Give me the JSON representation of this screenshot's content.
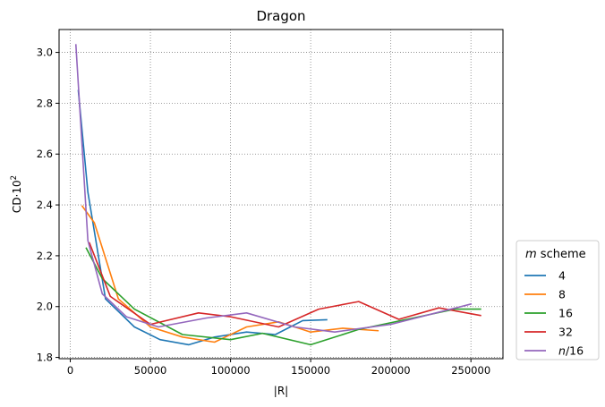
{
  "chart_data": {
    "type": "line",
    "title": "Dragon",
    "xlabel": "|R|",
    "ylabel": "CD·10",
    "ylabel_sup": "2",
    "xlim": [
      -7000,
      270000
    ],
    "ylim": [
      1.795,
      3.09
    ],
    "xticks": [
      0,
      50000,
      100000,
      150000,
      200000,
      250000
    ],
    "yticks": [
      1.8,
      2.0,
      2.2,
      2.4,
      2.6,
      2.8,
      3.0
    ],
    "ytick_labels": [
      "1.8",
      "2.0",
      "2.2",
      "2.4",
      "2.6",
      "2.8",
      "3.0"
    ],
    "grid": true,
    "legend": {
      "placement": "lower-right-outside",
      "title_italic": "m",
      "title_rest": " scheme"
    },
    "series": [
      {
        "name": "4",
        "color": "#1f77b4",
        "x": [
          5000,
          11000,
          22000,
          40000,
          56000,
          74000,
          90000,
          110000,
          128000,
          145000,
          160000
        ],
        "y": [
          2.85,
          2.45,
          2.03,
          1.92,
          1.87,
          1.85,
          1.88,
          1.9,
          1.89,
          1.945,
          1.948
        ]
      },
      {
        "name": "8",
        "color": "#ff7f0e",
        "x": [
          7500,
          15000,
          30000,
          50000,
          70000,
          90000,
          110000,
          130000,
          150000,
          170000,
          192000
        ],
        "y": [
          2.395,
          2.33,
          2.03,
          1.92,
          1.88,
          1.86,
          1.92,
          1.94,
          1.9,
          1.915,
          1.905
        ]
      },
      {
        "name": "16",
        "color": "#2ca02c",
        "x": [
          10000,
          20000,
          40000,
          70000,
          100000,
          120000,
          150000,
          180000,
          210000,
          240000,
          256000
        ],
        "y": [
          2.23,
          2.11,
          1.99,
          1.89,
          1.87,
          1.895,
          1.85,
          1.91,
          1.95,
          1.99,
          1.99
        ]
      },
      {
        "name": "32",
        "color": "#d62728",
        "x": [
          12000,
          25000,
          50000,
          80000,
          100000,
          130000,
          155000,
          180000,
          205000,
          230000,
          256000
        ],
        "y": [
          2.25,
          2.04,
          1.93,
          1.975,
          1.96,
          1.92,
          1.99,
          2.02,
          1.95,
          1.995,
          1.965
        ]
      },
      {
        "name": "n/16",
        "name_italic": "n",
        "name_rest": "/16",
        "color": "#9467bd",
        "x": [
          3500,
          11000,
          20000,
          35000,
          55000,
          85000,
          110000,
          140000,
          165000,
          200000,
          250000
        ],
        "y": [
          3.03,
          2.26,
          2.05,
          1.96,
          1.92,
          1.955,
          1.975,
          1.92,
          1.9,
          1.93,
          2.01
        ]
      }
    ]
  }
}
